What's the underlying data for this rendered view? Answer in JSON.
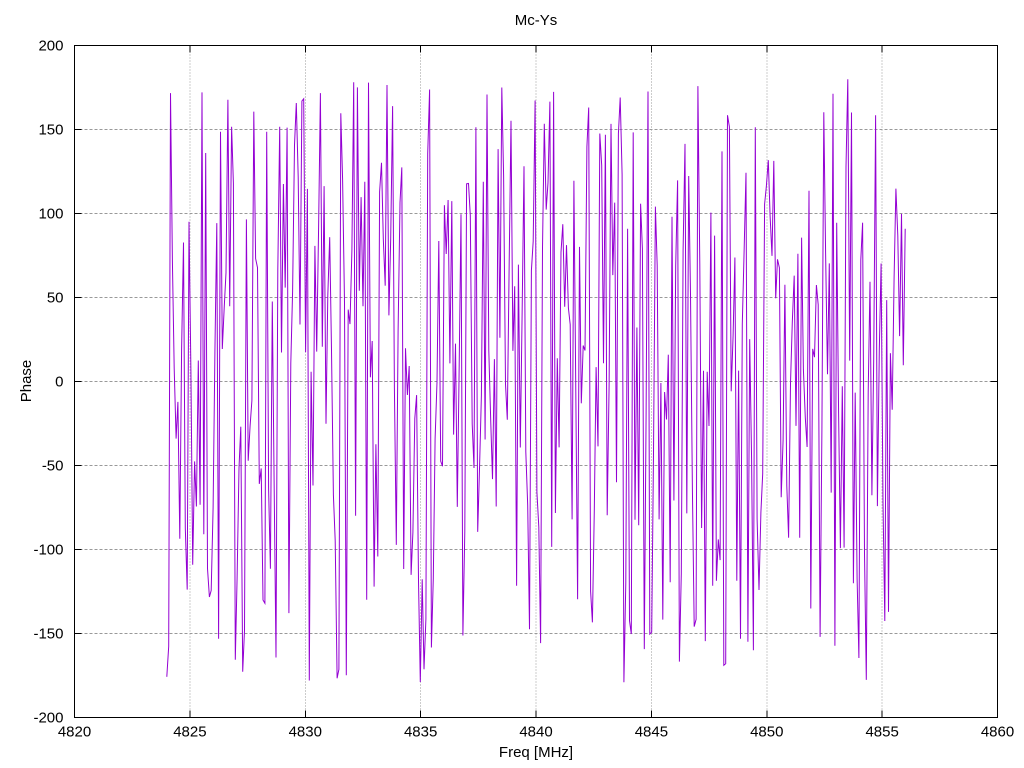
{
  "window": {
    "background": "#ffffff"
  },
  "chart_data": {
    "type": "line",
    "title": "Mc-Ys",
    "xlabel": "Freq [MHz]",
    "ylabel": "Phase",
    "xlim": [
      4820,
      4860
    ],
    "ylim": [
      -200,
      200
    ],
    "x_ticks": [
      4820,
      4825,
      4830,
      4835,
      4840,
      4845,
      4850,
      4855,
      4860
    ],
    "y_ticks": [
      -200,
      -150,
      -100,
      -50,
      0,
      50,
      100,
      150,
      200
    ],
    "grid": true,
    "legend_position": "none",
    "colors": {
      "line": "#9400d3",
      "grid": "#999999",
      "axis": "#000000",
      "text": "#000000"
    },
    "series": [
      {
        "name": "Mc-Ys",
        "style": "lines",
        "color": "#9400d3",
        "x_start": 4824.0,
        "x_end": 4856.0,
        "n_points": 400,
        "y_min": -180,
        "y_max": 180,
        "signal": "wrapped phase noise: values jump across the full -180..180 deg range, drawn as near-vertical strokes",
        "prng_seed": 7
      }
    ]
  }
}
